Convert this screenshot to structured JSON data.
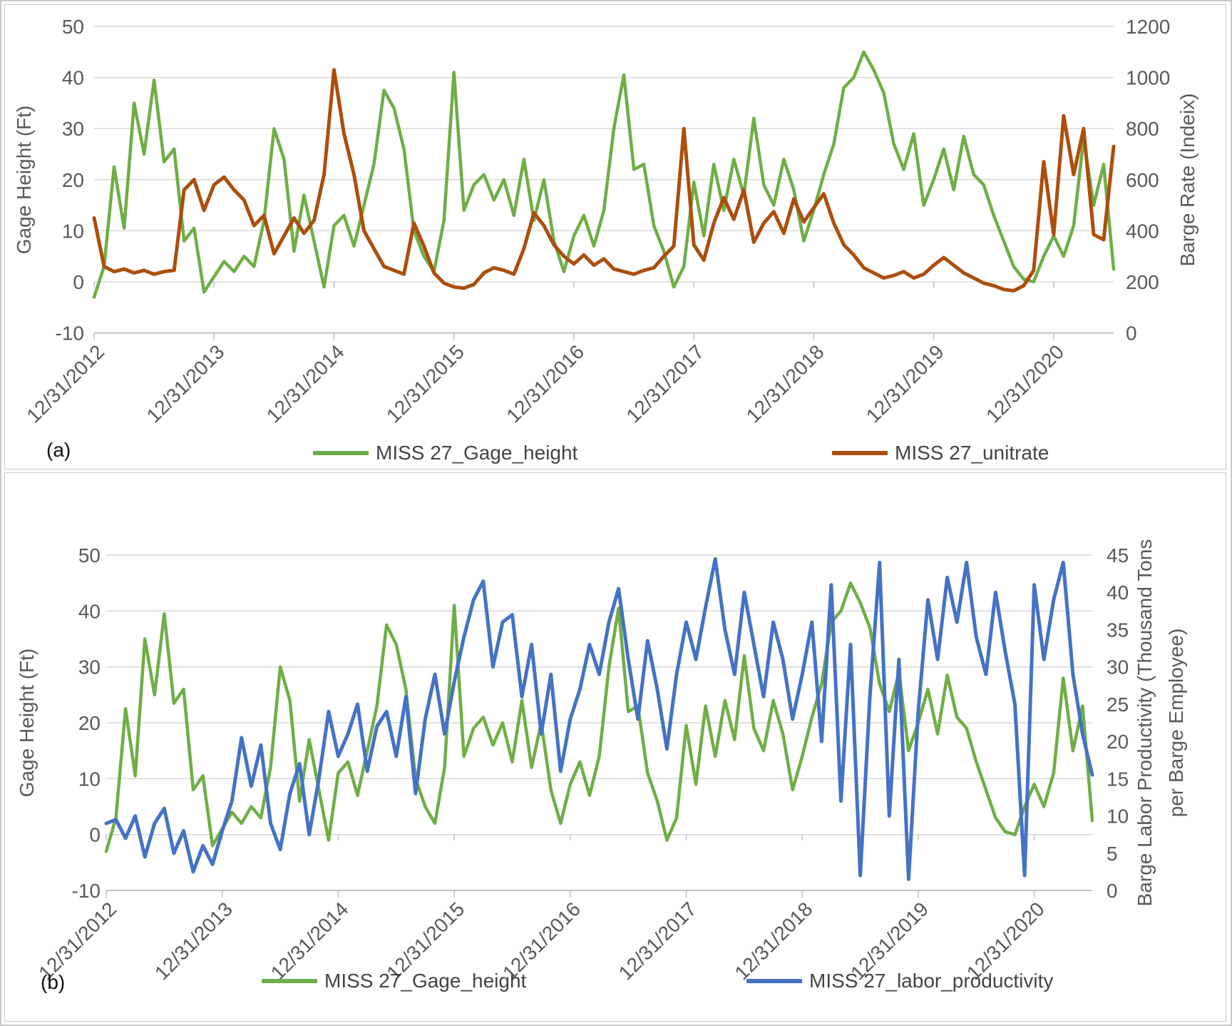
{
  "colors": {
    "gage_green": "#70AD47",
    "unitrate_brown": "#AC4E0E",
    "productivity_blue": "#4472C4",
    "grid": "#D9D9D9",
    "axis_line": "#BFBFBF",
    "tick_text": "#595959"
  },
  "chart_data": [
    {
      "id": "a",
      "type": "line",
      "panel_label": "(a)",
      "y_left": {
        "label": "Gage Height (Ft)",
        "min": -10,
        "max": 50,
        "ticks": [
          50,
          40,
          30,
          20,
          10,
          0,
          -10
        ]
      },
      "y_right": {
        "label": "Barge Rate (Indeix)",
        "min": 0,
        "max": 1200,
        "ticks": [
          1200,
          1000,
          800,
          600,
          400,
          200,
          0
        ]
      },
      "x": {
        "tick_labels": [
          "12/31/2012",
          "12/31/2013",
          "12/31/2014",
          "12/31/2015",
          "12/31/2016",
          "12/31/2017",
          "12/31/2018",
          "12/31/2019",
          "12/31/2020"
        ],
        "tick_month_indices": [
          0,
          12,
          24,
          36,
          48,
          60,
          72,
          84,
          96
        ]
      },
      "series": [
        {
          "name": "MISS 27_Gage_height",
          "axis": "left",
          "color_key": "gage_green",
          "values": [
            -3,
            3,
            22.5,
            10.5,
            35,
            25,
            39.5,
            23.5,
            26,
            8,
            10.5,
            -2,
            1,
            4,
            2,
            5,
            3,
            12,
            30,
            24,
            6,
            17,
            8,
            -1,
            11,
            13,
            7,
            15,
            23,
            37.5,
            34,
            26,
            10,
            5,
            2,
            12,
            41,
            14,
            19,
            21,
            16,
            20,
            13,
            24,
            12,
            20,
            8,
            2,
            9,
            13,
            7,
            14,
            30,
            40.5,
            22,
            23,
            11,
            6,
            -1,
            3,
            19.5,
            9,
            23,
            14,
            24,
            17,
            32,
            19,
            15,
            24,
            18,
            8,
            14,
            21,
            27,
            38,
            40,
            45,
            41.5,
            37,
            27,
            22,
            29,
            15,
            20,
            26,
            18,
            28.5,
            21,
            19,
            13,
            8,
            3,
            0.5,
            0,
            5,
            9,
            5,
            11,
            28,
            15,
            23,
            2.5
          ]
        },
        {
          "name": "MISS 27_unitrate",
          "axis": "right",
          "color_key": "unitrate_brown",
          "values": [
            450,
            260,
            240,
            250,
            235,
            245,
            230,
            240,
            245,
            560,
            600,
            480,
            580,
            610,
            560,
            520,
            420,
            460,
            310,
            380,
            450,
            390,
            440,
            620,
            1030,
            780,
            620,
            400,
            330,
            260,
            245,
            230,
            430,
            340,
            235,
            195,
            180,
            175,
            190,
            235,
            255,
            245,
            230,
            330,
            470,
            420,
            345,
            300,
            270,
            305,
            265,
            290,
            250,
            240,
            230,
            245,
            255,
            300,
            340,
            800,
            345,
            285,
            430,
            530,
            445,
            560,
            355,
            430,
            475,
            390,
            525,
            435,
            490,
            545,
            430,
            345,
            305,
            255,
            235,
            215,
            225,
            240,
            215,
            230,
            265,
            295,
            265,
            235,
            215,
            195,
            185,
            170,
            165,
            185,
            245,
            670,
            385,
            850,
            620,
            800,
            385,
            365,
            730
          ]
        }
      ]
    },
    {
      "id": "b",
      "type": "line",
      "panel_label": "(b)",
      "y_left": {
        "label": "Gage Height (Ft)",
        "min": -10,
        "max": 50,
        "ticks": [
          50,
          40,
          30,
          20,
          10,
          0,
          -10
        ]
      },
      "y_right": {
        "label": "Barge Labor Productivity (Thousand Tons per Barge Employee)",
        "label_line1": "Barge Labor Productivity (Thousand Tons",
        "label_line2": "per Barge Employee)",
        "min": 0,
        "max": 45,
        "ticks": [
          45,
          40,
          35,
          30,
          25,
          20,
          15,
          10,
          5,
          0
        ]
      },
      "x": {
        "tick_labels": [
          "12/31/2012",
          "12/31/2013",
          "12/31/2014",
          "12/31/2015",
          "12/31/2016",
          "12/31/2017",
          "12/31/2018",
          "12/31/2019",
          "12/31/2020"
        ],
        "tick_month_indices": [
          0,
          12,
          24,
          36,
          48,
          60,
          72,
          84,
          96
        ]
      },
      "series": [
        {
          "name": "MISS 27_Gage_height",
          "axis": "left",
          "color_key": "gage_green",
          "values": [
            -3,
            3,
            22.5,
            10.5,
            35,
            25,
            39.5,
            23.5,
            26,
            8,
            10.5,
            -2,
            1,
            4,
            2,
            5,
            3,
            12,
            30,
            24,
            6,
            17,
            8,
            -1,
            11,
            13,
            7,
            15,
            23,
            37.5,
            34,
            26,
            10,
            5,
            2,
            12,
            41,
            14,
            19,
            21,
            16,
            20,
            13,
            24,
            12,
            20,
            8,
            2,
            9,
            13,
            7,
            14,
            30,
            40.5,
            22,
            23,
            11,
            6,
            -1,
            3,
            19.5,
            9,
            23,
            14,
            24,
            17,
            32,
            19,
            15,
            24,
            18,
            8,
            14,
            21,
            27,
            38,
            40,
            45,
            41.5,
            37,
            27,
            22,
            29,
            15,
            20,
            26,
            18,
            28.5,
            21,
            19,
            13,
            8,
            3,
            0.5,
            0,
            5,
            9,
            5,
            11,
            28,
            15,
            23,
            2.5
          ]
        },
        {
          "name": "MISS 27_labor_productivity",
          "axis": "right",
          "color_key": "productivity_blue",
          "values": [
            9,
            9.5,
            7,
            10,
            4.5,
            9,
            11,
            5,
            8,
            2.5,
            6,
            3.5,
            8,
            12,
            20.5,
            14,
            19.5,
            9,
            5.5,
            13,
            17,
            7.5,
            15,
            24,
            18,
            21,
            25,
            16,
            22,
            24,
            18,
            26,
            13,
            23,
            29,
            21,
            28,
            34,
            39,
            41.5,
            30,
            36,
            37,
            26,
            33,
            21,
            29,
            16,
            23,
            27,
            33,
            29,
            36,
            40.5,
            31,
            23,
            33.5,
            27,
            19,
            29,
            36,
            31,
            38,
            44.5,
            35,
            29,
            40,
            33,
            26,
            36,
            31,
            23,
            29,
            36,
            20,
            41,
            12,
            33,
            2,
            26,
            44,
            10,
            31,
            1.5,
            24,
            39,
            31,
            42,
            36,
            44,
            34,
            29,
            40,
            32,
            25,
            2,
            41,
            31,
            39,
            44,
            29,
            21,
            15.5
          ]
        }
      ]
    }
  ]
}
